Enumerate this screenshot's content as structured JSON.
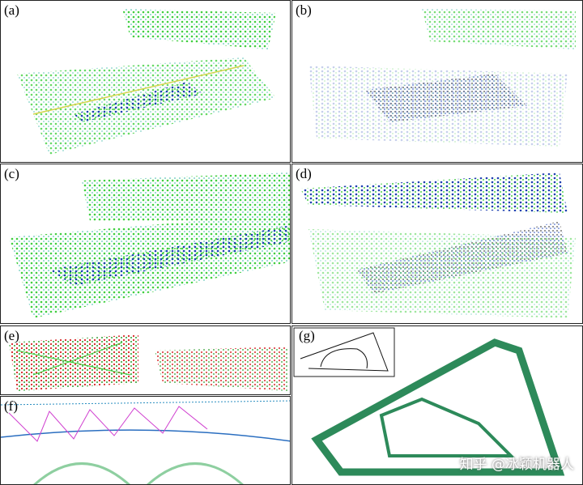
{
  "panels": [
    {
      "label": "(a)"
    },
    {
      "label": "(b)"
    },
    {
      "label": "(c)"
    },
    {
      "label": "(d)"
    },
    {
      "label": "(e)"
    },
    {
      "label": "(f)"
    },
    {
      "label": "(g)"
    }
  ],
  "watermark": "知乎 @冰颖机器人"
}
